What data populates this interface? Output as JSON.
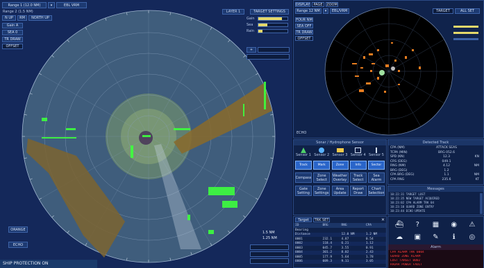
{
  "main_radar": {
    "range_label": "Range 1 (12.0 NM)",
    "range_sub": "Range 2 (1.5 NM)",
    "mode_label": "EBL VRM",
    "heading_buttons": [
      "N UP",
      "RM",
      "NORTH UP"
    ],
    "left_buttons": [
      "Gain A",
      "SEA 0",
      "TR DRAW",
      "OFFSET"
    ],
    "top_right_label": "LAYER 1",
    "top_right_button": "TARGET SETTINGS",
    "right_controls": [
      {
        "label": "Gain",
        "level": 0.8
      },
      {
        "label": "Sea",
        "level": 0.3
      },
      {
        "label": "Rain",
        "level": 0.15
      }
    ],
    "bottom_left_buttons": [
      "ORANGE",
      "ECHO"
    ],
    "status_bar": "SHIP PROTECTION ON",
    "bottom_right_values": [
      "1.5 NM",
      "1.25 NM"
    ]
  },
  "mini_radar": {
    "tabs": [
      "DISPLAY",
      "PAGE",
      "ZOOM"
    ],
    "range_label": "Range 12 NM",
    "mode_label": "EBL/VRM",
    "right_labels": [
      "TARGET",
      "ALL SET"
    ],
    "side_buttons": [
      "FOUR NM",
      "SEA OFF",
      "TR DRAW",
      "OFFSET"
    ],
    "bottom_label": "ECHO"
  },
  "sensor_panel": {
    "title": "Sonar / Hydrophone Sensor",
    "items": [
      "Sensor 1",
      "Sensor 2",
      "Sensor 3",
      "Sensor 4",
      "Sensor 5"
    ],
    "tool_buttons": [
      "Track",
      "Mark",
      "Zone",
      "Info",
      "Sector"
    ],
    "action_buttons": [
      "Compass",
      "Zone Select",
      "Weather Overlay",
      "Track Select",
      "Sea Alarm"
    ],
    "action_buttons_2": [
      "Gate Setting",
      "Zone Settings",
      "Area Update",
      "Report Draw",
      "Chart Selection"
    ]
  },
  "detection": {
    "title": "Detected Track",
    "rows": [
      {
        "k": "CPA (NM)",
        "v": "ATTACK SEAS"
      },
      {
        "k": "TCPA (MIN)",
        "v": "BRG 052.6"
      },
      {
        "k": "SPD (KN)",
        "v": "12.3",
        "u": "KN"
      },
      {
        "k": "CRS (DEG)",
        "v": "049.1"
      },
      {
        "k": "RNG (NM)",
        "v": "4.12",
        "u": "NM"
      },
      {
        "k": "BRG (DEG)",
        "v": "1.2"
      },
      {
        "k": "CPA BRG (DEG)",
        "v": "1.1",
        "u": "NM"
      },
      {
        "k": "CPA RNG",
        "v": "235.6",
        "u": "KT"
      }
    ]
  },
  "messages": {
    "title": "Messages",
    "lines": [
      "10:22:31 TARGET LOST",
      "10:22:35 NEW TARGET ACQUIRED",
      "10:23:02 CPA ALARM TRK 04",
      "10:23:10 GUARD ZONE ENTRY",
      "10:23:44 ECHO UPDATE"
    ]
  },
  "target_list": {
    "tabs": [
      "Target",
      "TRK SET"
    ],
    "header": [
      "ID",
      "BRG",
      "RNG",
      "CPA"
    ],
    "rows": [
      {
        "id": "Bearing",
        "brg": "",
        "rng": "",
        "cpa": ""
      },
      {
        "id": "Distance",
        "brg": "",
        "rng": "12.0 NM",
        "cpa": "1.2 NM"
      },
      {
        "id": "0001",
        "brg": "232.1",
        "rng": "4.87",
        "cpa": "0.54"
      },
      {
        "id": "0002",
        "brg": "118.4",
        "rng": "6.21",
        "cpa": "1.12"
      },
      {
        "id": "0003",
        "brg": "045.7",
        "rng": "3.55",
        "cpa": "0.91"
      },
      {
        "id": "0004",
        "brg": "301.2",
        "rng": "8.02",
        "cpa": "2.43"
      },
      {
        "id": "0005",
        "brg": "177.9",
        "rng": "5.64",
        "cpa": "1.78"
      },
      {
        "id": "0006",
        "brg": "089.3",
        "rng": "9.11",
        "cpa": "3.05"
      }
    ]
  },
  "icon_panel": {
    "icons": [
      "ship-icon",
      "help-icon",
      "chart-icon",
      "signal-icon",
      "warning-icon",
      "cloud-icon",
      "display-icon",
      "tools-icon",
      "info-icon",
      "globe-icon"
    ],
    "alarm_title": "Alarm",
    "alarm_lines": [
      "CPA ALARM TRK 0004",
      "GUARD ZONE ALARM",
      "LOST TARGET 0002",
      "RADAR POWER FAULT"
    ]
  }
}
